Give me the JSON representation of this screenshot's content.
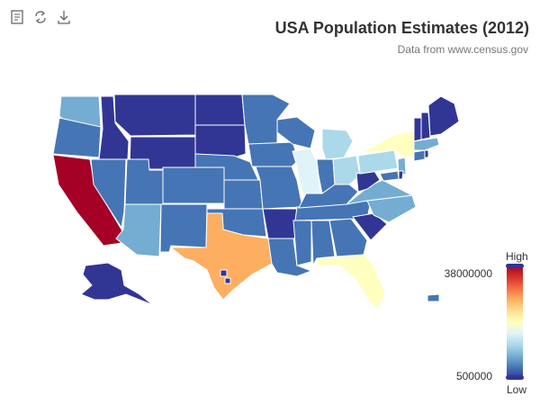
{
  "toolbar": {
    "items": [
      {
        "name": "data-view-icon"
      },
      {
        "name": "restore-icon"
      },
      {
        "name": "save-as-image-icon"
      }
    ]
  },
  "title": "USA Population Estimates (2012)",
  "subtitle": "Data from www.census.gov",
  "legend": {
    "high_text": "High",
    "low_text": "Low",
    "max_label": "38000000",
    "min_label": "500000",
    "colors": [
      "#a50026",
      "#d73027",
      "#f46d43",
      "#fdae61",
      "#fee090",
      "#ffffbf",
      "#e0f3f8",
      "#abd9e9",
      "#74add1",
      "#4575b4",
      "#313695"
    ]
  },
  "colors": {
    "very_low": "#313695",
    "low": "#4575b4",
    "mid_low": "#74add1",
    "mid": "#abd9e9",
    "light": "#e0f3f8",
    "yellow": "#ffffbf",
    "peach": "#fdae61",
    "red": "#a50026",
    "border": "#ffffff"
  }
}
